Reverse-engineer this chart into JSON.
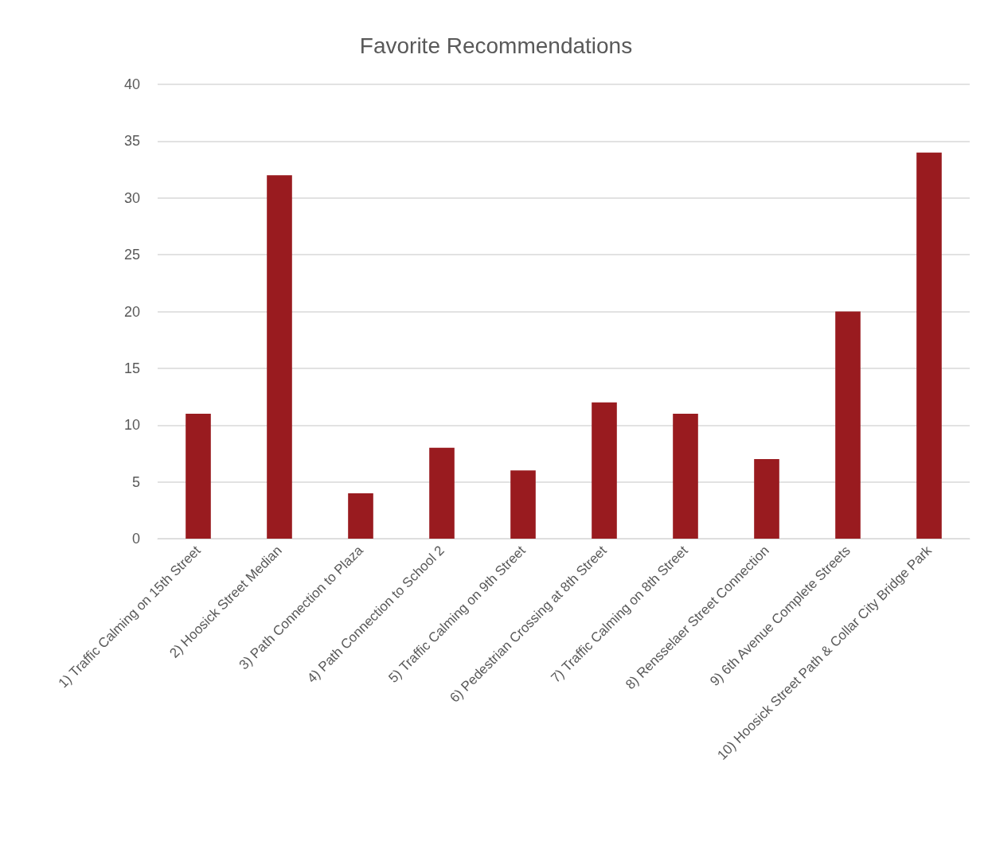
{
  "chart_data": {
    "type": "bar",
    "title": "Favorite Recommendations",
    "categories": [
      "1) Traffic Calming on 15th Street",
      "2) Hoosick Street Median",
      "3) Path Connection to Plaza",
      "4) Path Connection to School 2",
      "5) Traffic Calming on 9th Street",
      "6) Pedestrian Crossing at 8th Street",
      "7) Traffic Calming on 8th Street",
      "8) Rensselaer Street Connection",
      "9) 6th Avenue Complete Streets",
      "10) Hoosick Street Path & Collar City Bridge Park"
    ],
    "values": [
      11,
      32,
      4,
      8,
      6,
      12,
      11,
      7,
      20,
      34
    ],
    "color": "#991b1f",
    "ylim": [
      0,
      40
    ],
    "yticks": [
      0,
      5,
      10,
      15,
      20,
      25,
      30,
      35,
      40
    ],
    "grid": "y"
  }
}
